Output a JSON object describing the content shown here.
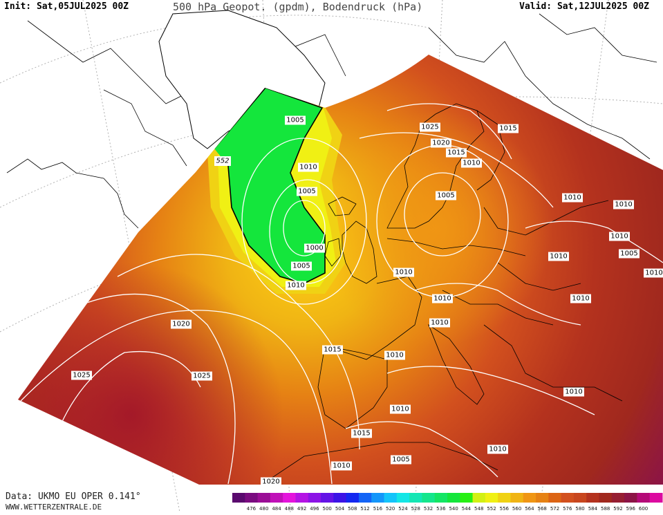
{
  "header": {
    "init": "Init: Sat,05JUL2025 00Z",
    "title": "500 hPa Geopot. (gpdm), Bodendruck (hPa)",
    "valid": "Valid: Sat,12JUL2025 00Z"
  },
  "footer": {
    "data_source": "Data: UKMO EU OPER 0.141°",
    "website": "WWW.WETTERZENTRALE.DE"
  },
  "map": {
    "geopotential_contour_label": "552",
    "isobar_labels": [
      {
        "text": "1005",
        "region": "east-greenland"
      },
      {
        "text": "1010",
        "region": "iceland-east"
      },
      {
        "text": "1005",
        "region": "iceland-south"
      },
      {
        "text": "1000",
        "region": "low-centre-atlantic"
      },
      {
        "text": "1005",
        "region": "low-south"
      },
      {
        "text": "1010",
        "region": "low-southeast"
      },
      {
        "text": "1025",
        "region": "northern-scandinavia"
      },
      {
        "text": "1020",
        "region": "central-scandinavia"
      },
      {
        "text": "1015",
        "region": "southern-scandinavia"
      },
      {
        "text": "1010",
        "region": "baltic-north"
      },
      {
        "text": "1015",
        "region": "finland"
      },
      {
        "text": "1005",
        "region": "baltic-low"
      },
      {
        "text": "1010",
        "region": "north-sea"
      },
      {
        "text": "1010",
        "region": "western-russia"
      },
      {
        "text": "1010",
        "region": "russia-east"
      },
      {
        "text": "1010",
        "region": "ukraine-north"
      },
      {
        "text": "1005",
        "region": "russia-south"
      },
      {
        "text": "1010",
        "region": "kazakhstan"
      },
      {
        "text": "1010",
        "region": "eastern-europe"
      },
      {
        "text": "1010",
        "region": "black-sea-north"
      },
      {
        "text": "1010",
        "region": "alps-north"
      },
      {
        "text": "1010",
        "region": "alps-south"
      },
      {
        "text": "1015",
        "region": "biscay"
      },
      {
        "text": "1010",
        "region": "western-mediterranean"
      },
      {
        "text": "1020",
        "region": "atlantic-west"
      },
      {
        "text": "1025",
        "region": "azores-west"
      },
      {
        "text": "1025",
        "region": "azores-east"
      },
      {
        "text": "1010",
        "region": "iberia-south"
      },
      {
        "text": "1015",
        "region": "gibraltar"
      },
      {
        "text": "1010",
        "region": "morocco"
      },
      {
        "text": "1005",
        "region": "algeria"
      },
      {
        "text": "1010",
        "region": "libya"
      },
      {
        "text": "1010",
        "region": "turkey"
      },
      {
        "text": "1020",
        "region": "sahara-west"
      }
    ]
  },
  "colorbar": {
    "ticks": [
      "476",
      "480",
      "484",
      "488",
      "492",
      "496",
      "500",
      "504",
      "508",
      "512",
      "516",
      "520",
      "524",
      "528",
      "532",
      "536",
      "540",
      "544",
      "548",
      "552",
      "556",
      "560",
      "564",
      "568",
      "572",
      "576",
      "580",
      "584",
      "588",
      "592",
      "596",
      "600"
    ],
    "colors": [
      "#5a0a6e",
      "#7a0c80",
      "#9a0e96",
      "#c010b8",
      "#e414dc",
      "#b414e4",
      "#8c14e6",
      "#6414e6",
      "#3c14e6",
      "#1428f0",
      "#1464f6",
      "#1496fa",
      "#14c4fa",
      "#14e6e6",
      "#14e6b4",
      "#14e68c",
      "#14e664",
      "#14e63c",
      "#28f014",
      "#d2f014",
      "#f0f014",
      "#f0d214",
      "#f0b414",
      "#f09614",
      "#e68214",
      "#dc6414",
      "#d2501e",
      "#c8461e",
      "#b4321e",
      "#a0281e",
      "#961e32",
      "#8c1446",
      "#b40a78",
      "#dc0aa0"
    ]
  }
}
